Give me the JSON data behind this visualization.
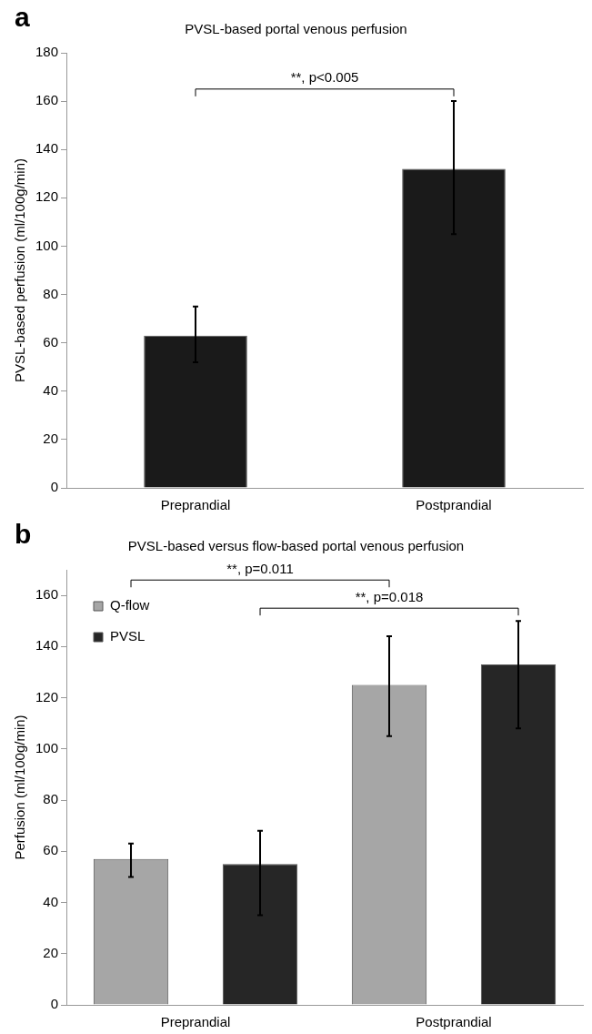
{
  "chart_data": [
    {
      "type": "bar",
      "title": "PVSL-based portal venous perfusion",
      "ylabel": "PVSL-based perfusion (ml/100g/min)",
      "categories": [
        "Preprandial",
        "Postprandial"
      ],
      "series": [
        {
          "color": "#1a1a1a",
          "values": [
            63,
            132
          ],
          "errors": [
            [
              52,
              75
            ],
            [
              105,
              160
            ]
          ]
        }
      ],
      "ylim": [
        0,
        180
      ],
      "yticks": [
        0,
        20,
        40,
        60,
        80,
        100,
        120,
        140,
        160,
        180
      ],
      "grid": false,
      "legend": false,
      "annotations": [
        "a",
        "**, p<0.005"
      ]
    },
    {
      "type": "bar",
      "title": "PVSL-based versus flow-based portal venous perfusion",
      "ylabel": "Perfusion (ml/100g/min)",
      "categories": [
        "Preprandial",
        "Postprandial"
      ],
      "series": [
        {
          "name": "Q-flow",
          "color": "#a6a6a6",
          "values": [
            57,
            125
          ],
          "errors": [
            [
              50,
              63
            ],
            [
              105,
              144
            ]
          ]
        },
        {
          "name": "PVSL",
          "color": "#262626",
          "values": [
            55,
            133
          ],
          "errors": [
            [
              35,
              68
            ],
            [
              108,
              150
            ]
          ]
        }
      ],
      "ylim": [
        0,
        170
      ],
      "yticks": [
        0,
        20,
        40,
        60,
        80,
        100,
        120,
        140,
        160
      ],
      "grid": false,
      "legend": "top left",
      "annotations": [
        "b",
        "**, p=0.011",
        "**, p=0.018"
      ]
    }
  ]
}
